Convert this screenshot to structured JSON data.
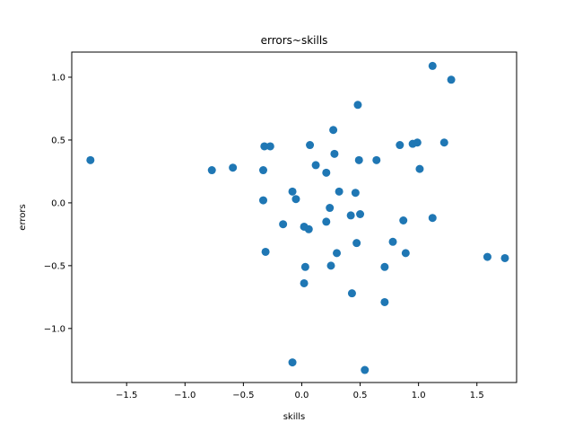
{
  "chart_data": {
    "type": "scatter",
    "title": "errors~skills",
    "xlabel": "skills",
    "ylabel": "errors",
    "xlim": [
      -1.97,
      1.84
    ],
    "ylim": [
      -1.43,
      1.2
    ],
    "xticks": [
      -1.5,
      -1.0,
      -0.5,
      0.0,
      0.5,
      1.0,
      1.5
    ],
    "xtick_labels": [
      "−1.5",
      "−1.0",
      "−0.5",
      "0.0",
      "0.5",
      "1.0",
      "1.5"
    ],
    "yticks": [
      -1.0,
      -0.5,
      0.0,
      0.5,
      1.0
    ],
    "ytick_labels": [
      "−1.0",
      "−0.5",
      "0.0",
      "0.5",
      "1.0"
    ],
    "grid": false,
    "marker_color": "#1f77b4",
    "points": [
      {
        "x": -1.81,
        "y": 0.34
      },
      {
        "x": -0.77,
        "y": 0.26
      },
      {
        "x": -0.59,
        "y": 0.28
      },
      {
        "x": -0.32,
        "y": 0.45
      },
      {
        "x": -0.27,
        "y": 0.45
      },
      {
        "x": -0.33,
        "y": 0.26
      },
      {
        "x": -0.33,
        "y": 0.02
      },
      {
        "x": -0.31,
        "y": -0.39
      },
      {
        "x": -0.16,
        "y": -0.17
      },
      {
        "x": -0.08,
        "y": 0.09
      },
      {
        "x": -0.05,
        "y": 0.03
      },
      {
        "x": -0.08,
        "y": -1.27
      },
      {
        "x": 0.02,
        "y": -0.19
      },
      {
        "x": 0.06,
        "y": -0.21
      },
      {
        "x": 0.03,
        "y": -0.51
      },
      {
        "x": 0.02,
        "y": -0.64
      },
      {
        "x": 0.07,
        "y": 0.46
      },
      {
        "x": 0.12,
        "y": 0.3
      },
      {
        "x": 0.21,
        "y": 0.24
      },
      {
        "x": 0.21,
        "y": -0.15
      },
      {
        "x": 0.24,
        "y": -0.04
      },
      {
        "x": 0.25,
        "y": -0.5
      },
      {
        "x": 0.27,
        "y": 0.58
      },
      {
        "x": 0.28,
        "y": 0.39
      },
      {
        "x": 0.3,
        "y": -0.4
      },
      {
        "x": 0.32,
        "y": 0.09
      },
      {
        "x": 0.42,
        "y": -0.1
      },
      {
        "x": 0.43,
        "y": -0.72
      },
      {
        "x": 0.46,
        "y": 0.08
      },
      {
        "x": 0.47,
        "y": -0.32
      },
      {
        "x": 0.48,
        "y": 0.78
      },
      {
        "x": 0.49,
        "y": 0.34
      },
      {
        "x": 0.5,
        "y": -0.09
      },
      {
        "x": 0.54,
        "y": -1.33
      },
      {
        "x": 0.64,
        "y": 0.34
      },
      {
        "x": 0.71,
        "y": -0.51
      },
      {
        "x": 0.71,
        "y": -0.79
      },
      {
        "x": 0.78,
        "y": -0.31
      },
      {
        "x": 0.84,
        "y": 0.46
      },
      {
        "x": 0.87,
        "y": -0.14
      },
      {
        "x": 0.89,
        "y": -0.4
      },
      {
        "x": 0.95,
        "y": 0.47
      },
      {
        "x": 0.99,
        "y": 0.48
      },
      {
        "x": 1.01,
        "y": 0.27
      },
      {
        "x": 1.12,
        "y": 1.09
      },
      {
        "x": 1.12,
        "y": -0.12
      },
      {
        "x": 1.22,
        "y": 0.48
      },
      {
        "x": 1.28,
        "y": 0.98
      },
      {
        "x": 1.59,
        "y": -0.43
      },
      {
        "x": 1.74,
        "y": -0.44
      }
    ]
  }
}
